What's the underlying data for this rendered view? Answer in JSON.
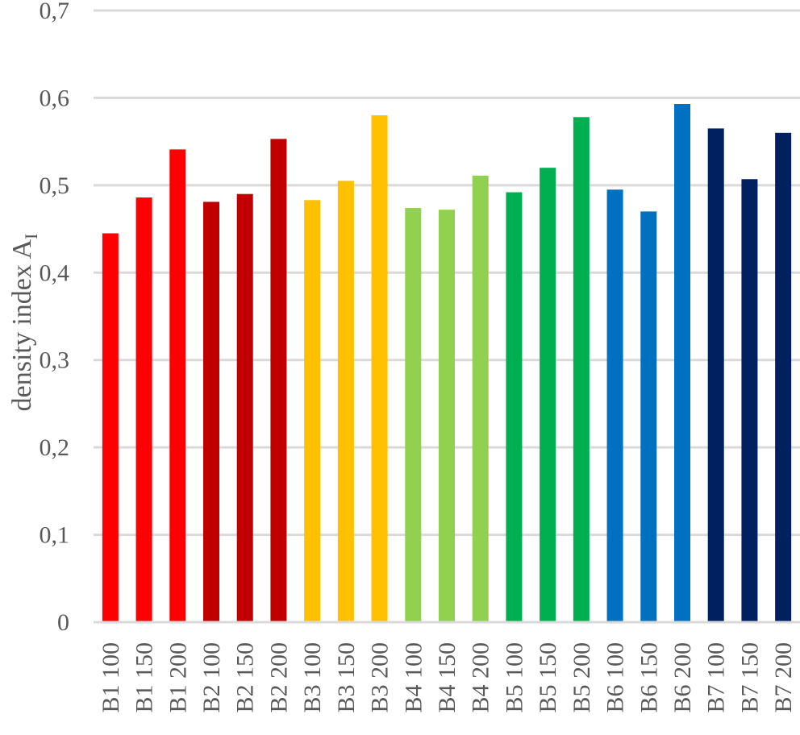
{
  "chart_data": {
    "type": "bar",
    "title": "",
    "xlabel": "",
    "ylabel": "density index A",
    "ylabel_subscript": "I",
    "ylim": [
      0,
      0.7
    ],
    "yticks": [
      0,
      0.1,
      0.2,
      0.3,
      0.4,
      0.5,
      0.6,
      0.7
    ],
    "ytick_labels": [
      "0",
      "0,1",
      "0,2",
      "0,3",
      "0,4",
      "0,5",
      "0,6",
      "0,7"
    ],
    "grid": true,
    "legend": "none",
    "categories": [
      "B1 100",
      "B1 150",
      "B1 200",
      "B2 100",
      "B2 150",
      "B2 200",
      "B3 100",
      "B3 150",
      "B3 200",
      "B4 100",
      "B4 150",
      "B4 200",
      "B5 100",
      "B5 150",
      "B5 200",
      "B6 100",
      "B6 150",
      "B6 200",
      "B7 100",
      "B7 150",
      "B7 200"
    ],
    "values": [
      0.445,
      0.486,
      0.541,
      0.481,
      0.49,
      0.553,
      0.483,
      0.505,
      0.58,
      0.474,
      0.472,
      0.511,
      0.492,
      0.52,
      0.578,
      0.495,
      0.47,
      0.593,
      0.565,
      0.507,
      0.56
    ],
    "colors": [
      "#ff0000",
      "#ff0000",
      "#ff0000",
      "#c00000",
      "#c00000",
      "#c00000",
      "#ffc000",
      "#ffc000",
      "#ffc000",
      "#92d050",
      "#92d050",
      "#92d050",
      "#00b050",
      "#00b050",
      "#00b050",
      "#0070c0",
      "#0070c0",
      "#0070c0",
      "#002060",
      "#002060",
      "#002060"
    ]
  }
}
